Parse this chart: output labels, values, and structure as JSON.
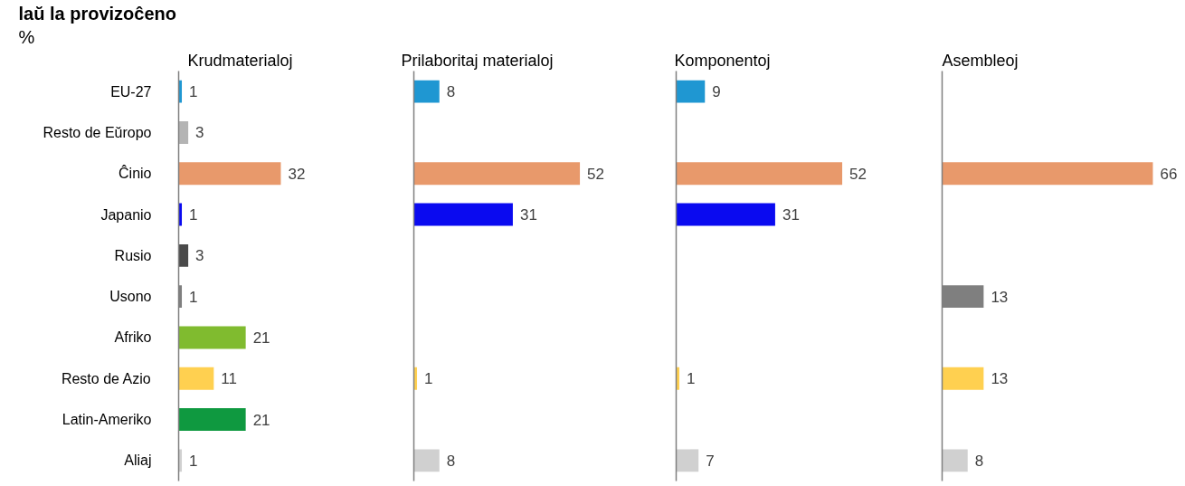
{
  "chart_data": [
    {
      "type": "bar",
      "orientation": "horizontal",
      "title": "Krudmaterialoj",
      "annotations": [
        "laŭ la provizoĉeno",
        "%"
      ],
      "categories": [
        "EU-27",
        "Resto de Eŭropo",
        "Ĉinio",
        "Japanio",
        "Rusio",
        "Usono",
        "Afriko",
        "Resto de Azio",
        "Latin-Ameriko",
        "Aliaj"
      ],
      "values": [
        1,
        3,
        32,
        1,
        3,
        1,
        21,
        11,
        21,
        1
      ],
      "colors": [
        "#1f97d2",
        "#b4b4b4",
        "#e8996b",
        "#0a0af0",
        "#4a4a4a",
        "#7f7f7f",
        "#80bb2f",
        "#ffd050",
        "#0f9940",
        "#d0d0d0"
      ],
      "data_labels": true,
      "tick_labels": "y"
    },
    {
      "type": "bar",
      "orientation": "horizontal",
      "title": "Prilaboritaj materialoj",
      "categories": [
        null,
        null,
        null,
        null,
        null,
        null,
        null,
        null,
        null,
        null
      ],
      "values": [
        8,
        null,
        52,
        31,
        null,
        null,
        null,
        1,
        null,
        8
      ],
      "colors": [
        "#1f97d2",
        null,
        "#e8996b",
        "#0a0af0",
        null,
        null,
        null,
        "#ffd050",
        null,
        "#d0d0d0"
      ],
      "data_labels": true
    },
    {
      "type": "bar",
      "orientation": "horizontal",
      "title": "Komponentoj",
      "categories": [
        null,
        null,
        null,
        null,
        null,
        null,
        null,
        null,
        null,
        null
      ],
      "values": [
        9,
        null,
        52,
        31,
        null,
        null,
        null,
        1,
        null,
        7
      ],
      "colors": [
        "#1f97d2",
        null,
        "#e8996b",
        "#0a0af0",
        null,
        null,
        null,
        "#ffd050",
        null,
        "#d0d0d0"
      ],
      "data_labels": true
    },
    {
      "type": "bar",
      "orientation": "horizontal",
      "title": "Asembleoj",
      "categories": [
        null,
        null,
        null,
        null,
        null,
        null,
        null,
        null,
        null,
        null
      ],
      "values": [
        null,
        null,
        66,
        null,
        null,
        13,
        null,
        13,
        null,
        8
      ],
      "colors": [
        null,
        null,
        "#e8996b",
        null,
        null,
        "#7f7f7f",
        null,
        "#ffd050",
        null,
        "#d0d0d0"
      ],
      "data_labels": true
    }
  ]
}
